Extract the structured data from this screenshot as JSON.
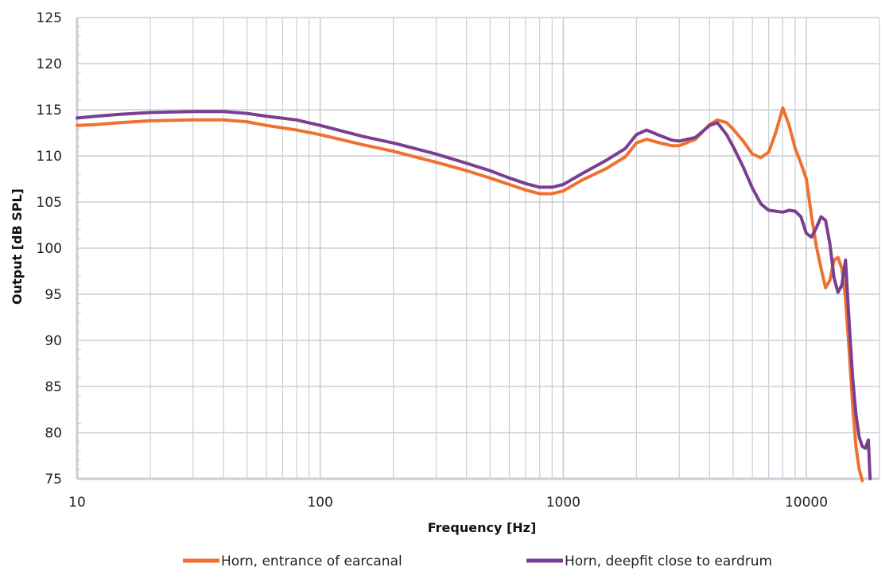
{
  "chart_data": {
    "type": "line",
    "xlabel": "Frequency [Hz]",
    "ylabel": "Output [dB SPL]",
    "x_scale": "log",
    "xlim": [
      10,
      20000
    ],
    "ylim": [
      75,
      125
    ],
    "x_ticks": [
      "10",
      "100",
      "1000",
      "10000"
    ],
    "x_tick_values": [
      10,
      100,
      1000,
      10000
    ],
    "y_ticks": [
      "75",
      "80",
      "85",
      "90",
      "95",
      "100",
      "105",
      "110",
      "115",
      "120",
      "125"
    ],
    "y_tick_values": [
      75,
      80,
      85,
      90,
      95,
      100,
      105,
      110,
      115,
      120,
      125
    ],
    "grid": true,
    "legend_position": "bottom",
    "series": [
      {
        "name": "Horn, entrance of earcanal",
        "color": "#f07030",
        "x": [
          10,
          12,
          15,
          20,
          30,
          40,
          50,
          60,
          80,
          100,
          150,
          200,
          300,
          400,
          500,
          600,
          700,
          800,
          900,
          1000,
          1200,
          1500,
          1800,
          2000,
          2200,
          2500,
          2800,
          3000,
          3500,
          4000,
          4300,
          4700,
          5000,
          5500,
          6000,
          6500,
          7000,
          7500,
          8000,
          8500,
          9000,
          9500,
          10000,
          10500,
          11000,
          11500,
          12000,
          12500,
          13000,
          13500,
          14000,
          14500,
          15000,
          15500,
          16000,
          16500,
          17000
        ],
        "y": [
          113.3,
          113.4,
          113.6,
          113.8,
          113.9,
          113.9,
          113.7,
          113.3,
          112.8,
          112.3,
          111.2,
          110.5,
          109.3,
          108.4,
          107.6,
          106.9,
          106.3,
          105.9,
          105.9,
          106.2,
          107.4,
          108.6,
          109.9,
          111.4,
          111.8,
          111.4,
          111.1,
          111.1,
          111.8,
          113.4,
          113.9,
          113.6,
          112.9,
          111.6,
          110.2,
          109.8,
          110.4,
          112.6,
          115.2,
          113.3,
          110.8,
          109.2,
          107.5,
          103.5,
          100.2,
          97.8,
          95.7,
          96.5,
          98.7,
          99.0,
          97.8,
          94.5,
          89.0,
          83.0,
          78.5,
          76.0,
          74.8
        ]
      },
      {
        "name": "Horn, deepfit close to eardrum",
        "color": "#7a3f8f",
        "x": [
          10,
          12,
          15,
          20,
          30,
          40,
          50,
          60,
          80,
          100,
          150,
          200,
          300,
          400,
          500,
          600,
          700,
          800,
          900,
          1000,
          1200,
          1500,
          1800,
          2000,
          2200,
          2500,
          2800,
          3000,
          3500,
          4000,
          4300,
          4700,
          5000,
          5500,
          6000,
          6500,
          7000,
          7500,
          8000,
          8500,
          9000,
          9500,
          10000,
          10500,
          11000,
          11500,
          12000,
          12500,
          13000,
          13500,
          14000,
          14500,
          15000,
          15500,
          16000,
          16500,
          17000,
          17500,
          18000,
          18300
        ],
        "y": [
          114.1,
          114.3,
          114.5,
          114.7,
          114.8,
          114.8,
          114.6,
          114.3,
          113.9,
          113.3,
          112.1,
          111.4,
          110.2,
          109.2,
          108.4,
          107.6,
          107.0,
          106.6,
          106.6,
          106.9,
          108.1,
          109.5,
          110.8,
          112.3,
          112.8,
          112.2,
          111.7,
          111.6,
          112.0,
          113.3,
          113.6,
          112.3,
          111.0,
          108.8,
          106.5,
          104.8,
          104.1,
          104.0,
          103.9,
          104.1,
          104.0,
          103.4,
          101.6,
          101.2,
          102.2,
          103.4,
          103.0,
          100.5,
          96.8,
          95.2,
          96.0,
          98.7,
          92.0,
          86.0,
          82.0,
          79.5,
          78.5,
          78.3,
          79.2,
          75.0
        ]
      }
    ]
  }
}
